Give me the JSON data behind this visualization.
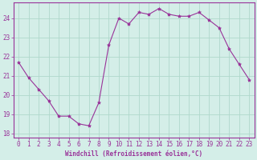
{
  "x": [
    0,
    1,
    2,
    3,
    4,
    5,
    6,
    7,
    8,
    9,
    10,
    11,
    12,
    13,
    14,
    15,
    16,
    17,
    18,
    19,
    20,
    21,
    22,
    23
  ],
  "y": [
    21.7,
    20.9,
    20.3,
    19.7,
    18.9,
    18.9,
    18.5,
    18.4,
    19.6,
    22.6,
    24.0,
    23.7,
    24.3,
    24.2,
    24.5,
    24.2,
    24.1,
    24.1,
    24.3,
    23.9,
    23.5,
    22.4,
    21.6,
    20.8
  ],
  "line_color": "#993399",
  "marker": "*",
  "marker_size": 3,
  "bg_color": "#d4eee8",
  "grid_color": "#b0d8cc",
  "xlabel": "Windchill (Refroidissement éolien,°C)",
  "xlabel_color": "#993399",
  "tick_color": "#993399",
  "spine_color": "#993399",
  "ylim": [
    17.8,
    24.8
  ],
  "xlim": [
    -0.5,
    23.5
  ],
  "yticks": [
    18,
    19,
    20,
    21,
    22,
    23,
    24
  ],
  "xticks": [
    0,
    1,
    2,
    3,
    4,
    5,
    6,
    7,
    8,
    9,
    10,
    11,
    12,
    13,
    14,
    15,
    16,
    17,
    18,
    19,
    20,
    21,
    22,
    23
  ],
  "tick_fontsize": 5.5,
  "xlabel_fontsize": 5.5
}
